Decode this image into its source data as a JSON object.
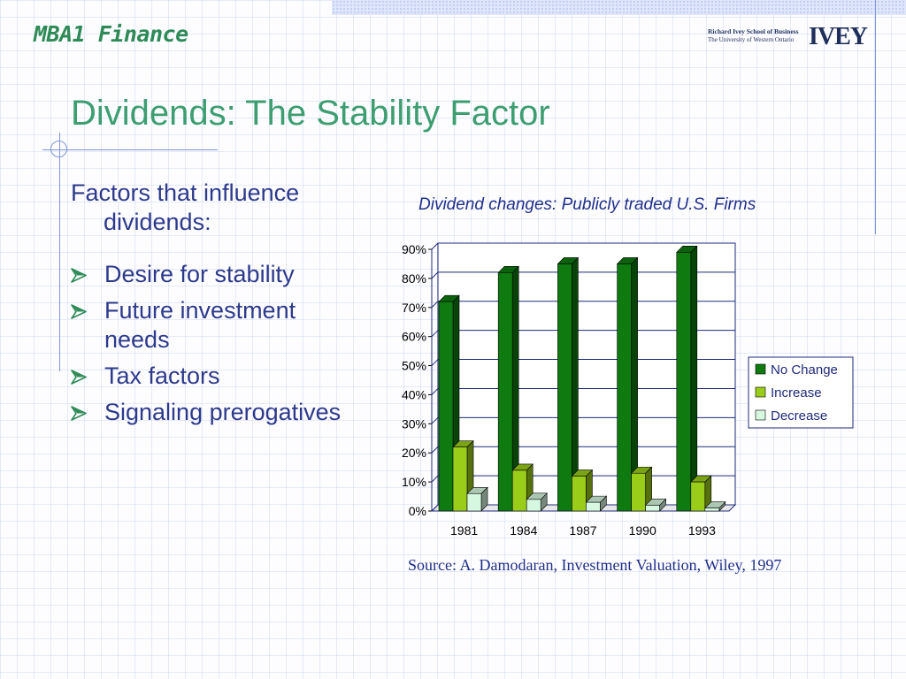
{
  "header": {
    "course_title": "MBA1 Finance"
  },
  "logo": {
    "line1": "Richard Ivey School of Business",
    "line2": "The University of Western Ontario",
    "wordmark": "IVEY"
  },
  "slide": {
    "title": "Dividends: The Stability Factor",
    "intro": "Factors that influence dividends:",
    "bullets": [
      "Desire for stability",
      "Future investment needs",
      "Tax factors",
      "Signaling prerogatives"
    ]
  },
  "colors": {
    "title": "#3d9e72",
    "text": "#2d3a8c",
    "bullet_arrow": "#2e8b57",
    "no_change": "#0f7a0f",
    "increase": "#9acd1a",
    "decrease": "#d6f7e0"
  },
  "icons": {
    "bullet": "arrow-bullet-icon"
  },
  "chart_data": {
    "type": "bar",
    "title": "Dividend changes: Publicly traded U.S. Firms",
    "categories": [
      "1981",
      "1984",
      "1987",
      "1990",
      "1993"
    ],
    "series": [
      {
        "name": "No Change",
        "values": [
          72,
          82,
          85,
          85,
          89
        ]
      },
      {
        "name": "Increase",
        "values": [
          22,
          14,
          12,
          13,
          10
        ]
      },
      {
        "name": "Decrease",
        "values": [
          6,
          4,
          3,
          2,
          1
        ]
      }
    ],
    "yticks": [
      "0%",
      "10%",
      "20%",
      "30%",
      "40%",
      "50%",
      "60%",
      "70%",
      "80%",
      "90%"
    ],
    "ylim": [
      0,
      90
    ],
    "grid": true,
    "legend_position": "right",
    "three_d": true
  },
  "source": "Source: A. Damodaran, Investment Valuation, Wiley, 1997"
}
